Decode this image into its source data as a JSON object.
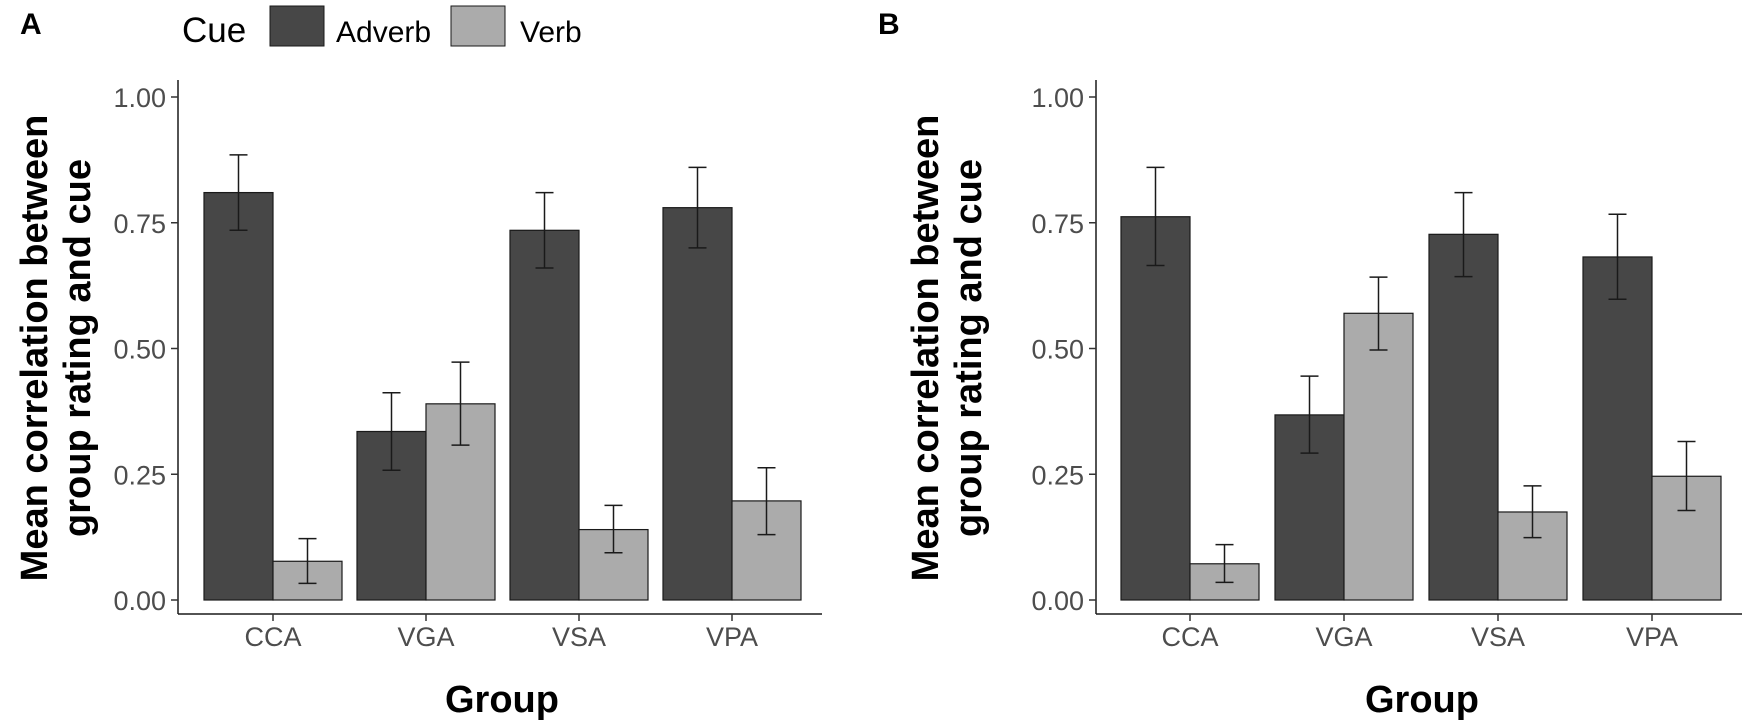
{
  "legend": {
    "title": "Cue",
    "items": [
      {
        "label": "Adverb",
        "color": "#474747"
      },
      {
        "label": "Verb",
        "color": "#ababab"
      }
    ]
  },
  "chart_data": [
    {
      "type": "bar",
      "panel": "A",
      "categories": [
        "CCA",
        "VGA",
        "VSA",
        "VPA"
      ],
      "series": [
        {
          "name": "Adverb",
          "values": [
            0.81,
            0.335,
            0.735,
            0.78
          ],
          "err_low": [
            0.735,
            0.258,
            0.66,
            0.7
          ],
          "err_high": [
            0.885,
            0.412,
            0.81,
            0.86
          ]
        },
        {
          "name": "Verb",
          "values": [
            0.077,
            0.39,
            0.14,
            0.197
          ],
          "err_low": [
            0.033,
            0.308,
            0.094,
            0.13
          ],
          "err_high": [
            0.122,
            0.473,
            0.188,
            0.263
          ]
        }
      ],
      "yticks": [
        "0.00",
        "0.25",
        "0.50",
        "0.75",
        "1.00"
      ],
      "ylim": [
        0,
        1
      ],
      "xlabel": "Group",
      "ylabel_line1": "Mean correlation between",
      "ylabel_line2": "group rating and cue"
    },
    {
      "type": "bar",
      "panel": "B",
      "categories": [
        "CCA",
        "VGA",
        "VSA",
        "VPA"
      ],
      "series": [
        {
          "name": "Adverb",
          "values": [
            0.762,
            0.368,
            0.727,
            0.682
          ],
          "err_low": [
            0.665,
            0.292,
            0.643,
            0.598
          ],
          "err_high": [
            0.86,
            0.445,
            0.81,
            0.767
          ]
        },
        {
          "name": "Verb",
          "values": [
            0.072,
            0.57,
            0.175,
            0.246
          ],
          "err_low": [
            0.035,
            0.497,
            0.124,
            0.178
          ],
          "err_high": [
            0.11,
            0.642,
            0.227,
            0.315
          ]
        }
      ],
      "yticks": [
        "0.00",
        "0.25",
        "0.50",
        "0.75",
        "1.00"
      ],
      "ylim": [
        0,
        1
      ],
      "xlabel": "Group",
      "ylabel_line1": "Mean correlation between",
      "ylabel_line2": "group rating and cue"
    }
  ]
}
